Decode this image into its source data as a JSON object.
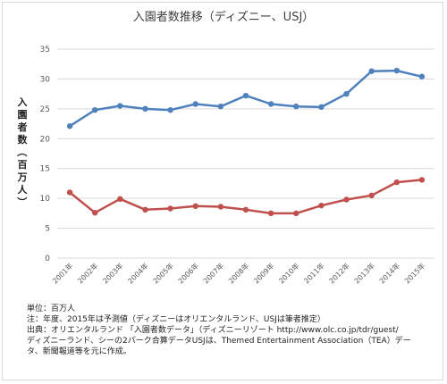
{
  "chart_data": {
    "type": "line",
    "title": "入園者数推移（ディズニー、USJ）",
    "ylabel": "入園者数（百万人）",
    "xlabel": "",
    "ylim": [
      0,
      35
    ],
    "yticks": [
      0,
      5,
      10,
      15,
      20,
      25,
      30,
      35
    ],
    "grid": true,
    "legend": "none",
    "categories": [
      "2001年",
      "2002年",
      "2003年",
      "2004年",
      "2005年",
      "2006年",
      "2007年",
      "2008年",
      "2009年",
      "2010年",
      "2011年",
      "2012年",
      "2013年",
      "2014年",
      "2015年"
    ],
    "series": [
      {
        "color": "#4f81bd",
        "values": [
          22.1,
          24.8,
          25.5,
          25.0,
          24.8,
          25.8,
          25.4,
          27.2,
          25.8,
          25.4,
          25.3,
          27.5,
          31.3,
          31.4,
          30.4
        ]
      },
      {
        "color": "#c0504d",
        "values": [
          11.0,
          7.6,
          9.9,
          8.1,
          8.3,
          8.7,
          8.6,
          8.1,
          7.5,
          7.5,
          8.8,
          9.8,
          10.5,
          12.7,
          13.1
        ]
      }
    ]
  },
  "notes": {
    "unit": "単位：百万人",
    "note": "注：年度、2015年は予測値（ディズニーはオリエンタルランド、USJは筆者推定）",
    "source1": "出典：オリエンタルランド 「入園者数データ」（ディズニーリゾート  http://www.olc.co.jp/tdr/guest/",
    "source2": "ディズニーランド、シーの2パーク合算データUSJは、Themed Entertainment Association（TEA）デー",
    "source3": "タ、新聞報道等を元に作成。"
  }
}
